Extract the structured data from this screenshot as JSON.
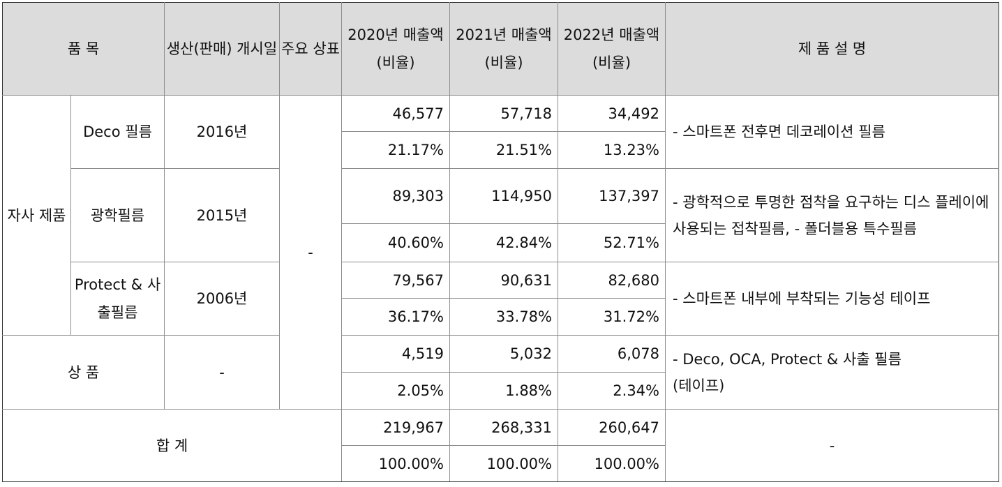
{
  "header": {
    "item": "품 목",
    "start_date": "생산(판매) 개시일",
    "brand": "주요 상표",
    "y2020": "2020년 매출액 (비율)",
    "y2021": "2021년 매출액 (비율)",
    "y2022": "2022년 매출액 (비율)",
    "desc": "제 품 설 명"
  },
  "group_own": "자사 제품",
  "brand_value": "-",
  "rows": [
    {
      "name": "Deco 필름",
      "start": "2016년",
      "amounts": [
        "46,577",
        "57,718",
        "34,492"
      ],
      "ratios": [
        "21.17%",
        "21.51%",
        "13.23%"
      ],
      "desc": "- 스마트폰 전후면 데코레이션 필름"
    },
    {
      "name": "광학필름",
      "start": "2015년",
      "amounts": [
        "89,303",
        "114,950",
        "137,397"
      ],
      "ratios": [
        "40.60%",
        "42.84%",
        "52.71%"
      ],
      "desc": "- 광학적으로 투명한 점착을 요구하는 디스 플레이에 사용되는 접착필름, - 폴더블용 특수필름"
    },
    {
      "name": "Protect & 사출필름",
      "start": "2006년",
      "amounts": [
        "79,567",
        "90,631",
        "82,680"
      ],
      "ratios": [
        "36.17%",
        "33.78%",
        "31.72%"
      ],
      "desc": "- 스마트폰 내부에 부착되는 기능성 테이프"
    }
  ],
  "goods": {
    "name": "상 품",
    "start": "-",
    "amounts": [
      "4,519",
      "5,032",
      "6,078"
    ],
    "ratios": [
      "2.05%",
      "1.88%",
      "2.34%"
    ],
    "desc": "- Deco, OCA, Protect & 사출 필름 (테이프)"
  },
  "total": {
    "name": "합 계",
    "amounts": [
      "219,967",
      "268,331",
      "260,647"
    ],
    "ratios": [
      "100.00%",
      "100.00%",
      "100.00%"
    ],
    "desc": "-"
  }
}
